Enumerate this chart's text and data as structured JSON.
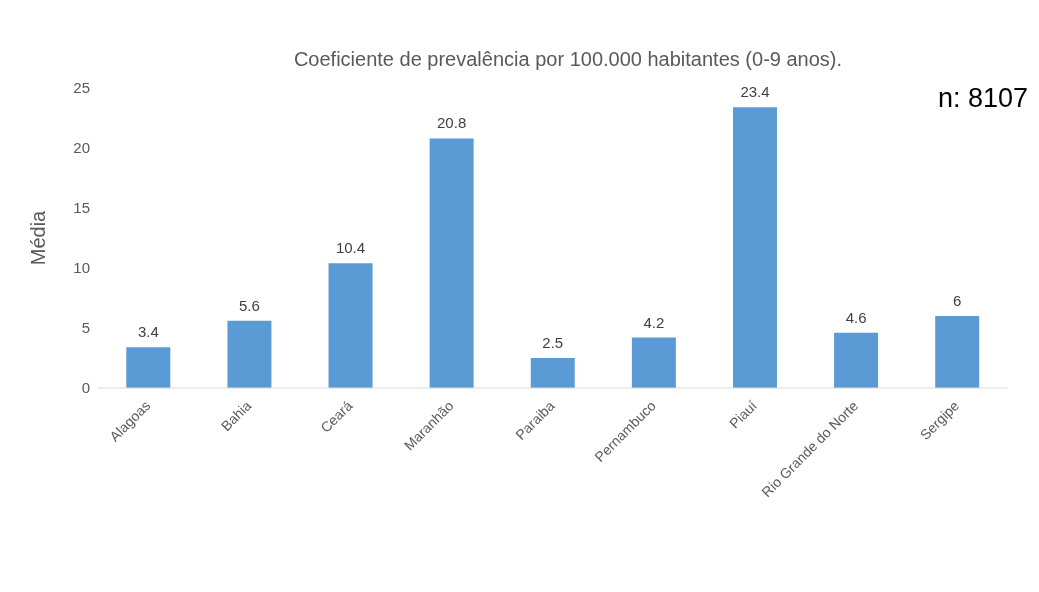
{
  "chart_data": {
    "type": "bar",
    "title": "Coeficiente de prevalência por 100.000 habitantes (0-9 anos).",
    "ylabel": "Média",
    "categories": [
      "Alagoas",
      "Bahia",
      "Ceará",
      "Maranhão",
      "Paraiba",
      "Pernambuco",
      "Piauí",
      "Rio Grande do Norte",
      "Sergipe"
    ],
    "values": [
      3.4,
      5.6,
      10.4,
      20.8,
      2.5,
      4.2,
      23.4,
      4.6,
      6
    ],
    "color": "#5b9bd5",
    "ylim": [
      0,
      25
    ],
    "yticks": [
      0,
      5,
      10,
      15,
      20,
      25
    ],
    "grid": false,
    "data_labels": true,
    "annotations": [
      "n: 8107"
    ]
  }
}
